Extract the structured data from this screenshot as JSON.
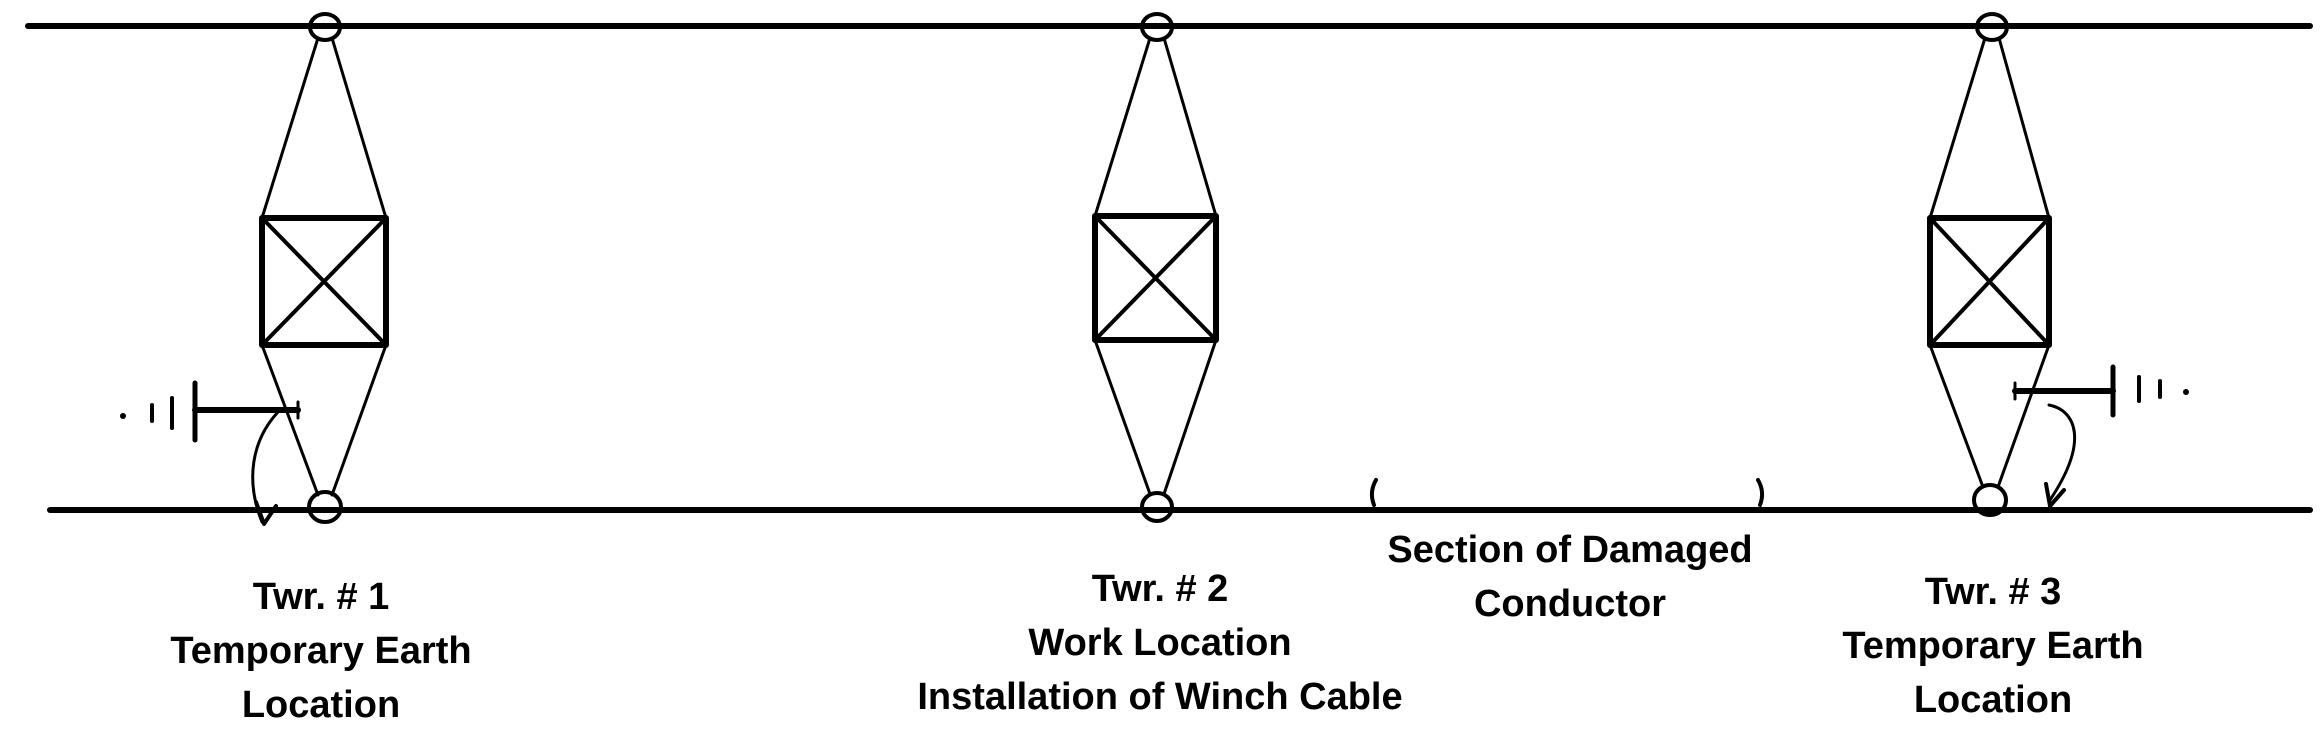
{
  "colors": {
    "line": "#000000",
    "background": "#ffffff"
  },
  "towers": [
    {
      "id": "twr-1",
      "label_lines": [
        "Twr. # 1",
        "Temporary Earth",
        "Location"
      ],
      "has_temporary_earth": true
    },
    {
      "id": "twr-2",
      "label_lines": [
        "Twr. # 2",
        "Work Location",
        "Installation of Winch Cable"
      ],
      "has_temporary_earth": false
    },
    {
      "id": "twr-3",
      "label_lines": [
        "Twr. # 3",
        "Temporary Earth",
        "Location"
      ],
      "has_temporary_earth": true
    }
  ],
  "damaged_section": {
    "label_lines": [
      "Section of Damaged",
      "Conductor"
    ]
  }
}
